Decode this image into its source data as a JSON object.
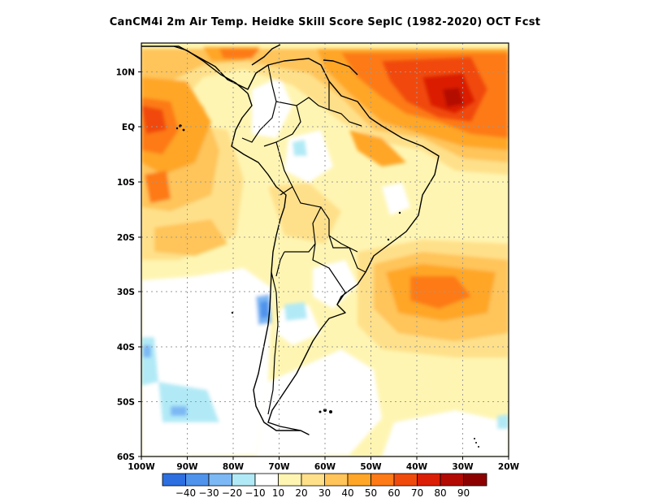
{
  "title": "CanCM4i  2m Air Temp. Heidke Skill Score SepIC (1982-2020) OCT Fcst",
  "map": {
    "projection": "latitude-longitude",
    "lon_range": [
      -100,
      -20
    ],
    "lat_range": [
      -60,
      15
    ],
    "x_ticks": [
      "100W",
      "90W",
      "80W",
      "70W",
      "60W",
      "50W",
      "40W",
      "30W",
      "20W"
    ],
    "y_ticks": [
      "10N",
      "EQ",
      "10S",
      "20S",
      "30S",
      "40S",
      "50S",
      "60S"
    ],
    "grid": "dotted",
    "variable": "Heidke Skill Score"
  },
  "colorbar": {
    "labels": [
      "-40",
      "-30",
      "-20",
      "-10",
      "10",
      "20",
      "30",
      "40",
      "50",
      "60",
      "70",
      "80",
      "90"
    ],
    "colors": [
      "#2d6fe0",
      "#4f93ec",
      "#7cb8f4",
      "#b1eaf6",
      "#ffffff",
      "#fff5b2",
      "#ffe08a",
      "#ffc45a",
      "#ffa628",
      "#fd7a16",
      "#f14a0d",
      "#db1e06",
      "#b30a04",
      "#8d0000"
    ]
  }
}
